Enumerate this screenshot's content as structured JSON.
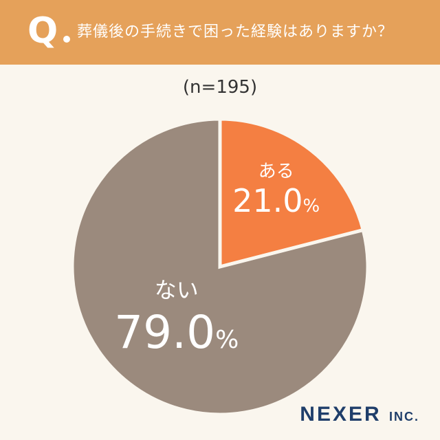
{
  "header": {
    "q_mark": "Q",
    "question": "葬儀後の手続きで困った経験はありますか？",
    "bg_color": "#e5a15a"
  },
  "sample_label": "(n=195)",
  "chart_data": {
    "type": "pie",
    "title": "葬儀後の手続きで困った経験はありますか？",
    "slices": [
      {
        "label": "ある",
        "value": 21.0,
        "display": "21.0",
        "unit": "%",
        "color": "#f47f42"
      },
      {
        "label": "ない",
        "value": 79.0,
        "display": "79.0",
        "unit": "%",
        "color": "#9b8a7d"
      }
    ]
  },
  "brand": {
    "name": "NEXER",
    "suffix": "INC."
  }
}
